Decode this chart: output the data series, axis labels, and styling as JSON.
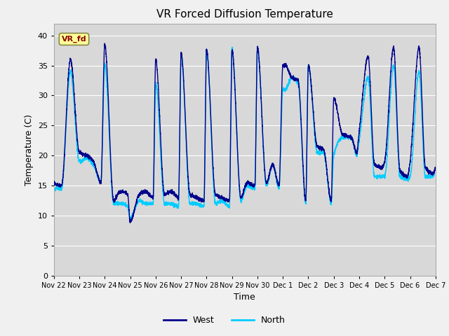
{
  "title": "VR Forced Diffusion Temperature",
  "xlabel": "Time",
  "ylabel": "Temperature (C)",
  "ylim": [
    0,
    42
  ],
  "yticks": [
    0,
    5,
    10,
    15,
    20,
    25,
    30,
    35,
    40
  ],
  "x_labels": [
    "Nov 22",
    "Nov 23",
    "Nov 24",
    "Nov 25",
    "Nov 26",
    "Nov 27",
    "Nov 28",
    "Nov 29",
    "Nov 30",
    "Dec 1",
    "Dec 2",
    "Dec 3",
    "Dec 4",
    "Dec 5",
    "Dec 6",
    "Dec 7"
  ],
  "west_color": "#00008B",
  "north_color": "#00CCFF",
  "background_color": "#D8D8D8",
  "figure_bg": "#F0F0F0",
  "legend_west": "West",
  "legend_north": "North",
  "tag_text": "VR_fd",
  "tag_bg": "#FFFF99",
  "tag_border": "#888844",
  "tag_text_color": "#8B0000",
  "west_key_times": [
    0.0,
    0.3,
    0.65,
    1.0,
    1.3,
    1.55,
    1.85,
    2.0,
    2.35,
    2.6,
    2.9,
    3.0,
    3.35,
    3.6,
    3.9,
    4.0,
    4.35,
    4.6,
    4.9,
    5.0,
    5.35,
    5.6,
    5.9,
    6.0,
    6.35,
    6.6,
    6.9,
    7.0,
    7.35,
    7.6,
    7.9,
    8.0,
    8.35,
    8.6,
    8.85,
    9.0,
    9.1,
    9.35,
    9.6,
    9.9,
    10.0,
    10.35,
    10.6,
    10.9,
    11.0,
    11.35,
    11.7,
    11.9,
    12.0,
    12.35,
    12.6,
    12.9,
    13.0,
    13.35,
    13.6,
    13.9,
    14.0,
    14.35,
    14.6,
    14.9,
    15.0
  ],
  "west_key_vals": [
    15.5,
    15.0,
    36.0,
    20.5,
    20.0,
    19.0,
    15.5,
    38.5,
    12.5,
    14.0,
    13.5,
    9.0,
    13.5,
    14.0,
    13.0,
    36.0,
    13.5,
    14.0,
    13.0,
    37.0,
    13.5,
    13.0,
    12.5,
    37.5,
    13.5,
    13.0,
    12.5,
    37.5,
    13.0,
    15.5,
    15.0,
    38.0,
    15.5,
    18.5,
    15.0,
    35.0,
    35.0,
    33.0,
    32.5,
    12.5,
    35.0,
    21.5,
    21.0,
    12.5,
    29.5,
    23.5,
    23.0,
    20.5,
    24.0,
    36.5,
    18.5,
    18.0,
    19.0,
    38.0,
    17.5,
    16.5,
    19.0,
    38.0,
    18.0,
    17.0,
    18.0
  ],
  "north_key_times": [
    0.0,
    0.3,
    0.65,
    1.0,
    1.3,
    1.55,
    1.85,
    2.0,
    2.35,
    2.6,
    2.9,
    3.0,
    3.35,
    3.6,
    3.9,
    4.0,
    4.35,
    4.6,
    4.9,
    5.0,
    5.35,
    5.6,
    5.9,
    6.0,
    6.35,
    6.6,
    6.9,
    7.0,
    7.35,
    7.6,
    7.9,
    8.0,
    8.35,
    8.6,
    8.85,
    9.0,
    9.1,
    9.35,
    9.6,
    9.9,
    10.0,
    10.35,
    10.6,
    10.9,
    11.0,
    11.35,
    11.7,
    11.9,
    12.0,
    12.35,
    12.6,
    12.9,
    13.0,
    13.35,
    13.6,
    13.9,
    14.0,
    14.35,
    14.6,
    14.9,
    15.0
  ],
  "north_key_vals": [
    14.5,
    14.5,
    34.0,
    19.0,
    19.5,
    18.5,
    15.5,
    35.0,
    12.0,
    12.0,
    11.5,
    9.5,
    12.5,
    12.0,
    12.0,
    32.0,
    12.0,
    12.0,
    11.5,
    37.0,
    12.0,
    12.0,
    11.5,
    37.5,
    12.0,
    12.5,
    11.5,
    38.0,
    12.5,
    15.0,
    14.5,
    38.0,
    15.0,
    18.5,
    14.5,
    31.0,
    31.0,
    33.0,
    32.0,
    12.0,
    35.0,
    20.5,
    20.5,
    12.0,
    20.0,
    23.0,
    23.0,
    20.0,
    22.5,
    33.0,
    16.5,
    16.5,
    16.5,
    35.0,
    16.5,
    16.0,
    16.5,
    34.0,
    16.5,
    16.5,
    18.0
  ]
}
